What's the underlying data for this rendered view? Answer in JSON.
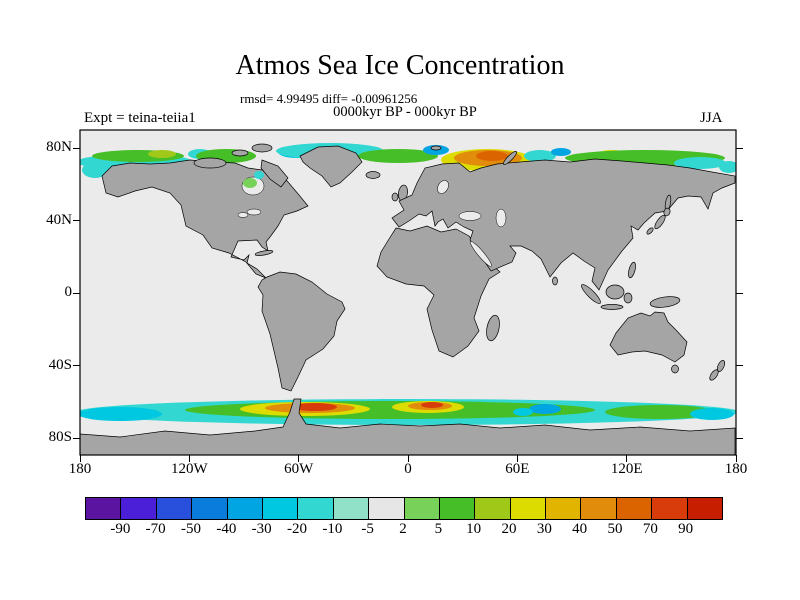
{
  "chart_data": {
    "type": "heatmap",
    "title": "Atmos Sea Ice Concentration",
    "stats_text": "rmsd= 4.99495 diff= -0.00961256",
    "rmsd": 4.99495,
    "diff": -0.00961256,
    "period_label": "0000kyr BP - 000kyr BP",
    "experiment_label": "Expt = teina-teiia1",
    "season_label": "JJA",
    "projection": "equirectangular world map, 90N-90S, 180W-180E",
    "lat_ticks": [
      "80N",
      "40N",
      "0",
      "40S",
      "80S"
    ],
    "lon_ticks": [
      "180",
      "120W",
      "60W",
      "0",
      "60E",
      "120E",
      "180"
    ],
    "colorbar": {
      "levels": [
        -90,
        -70,
        -50,
        -40,
        -30,
        -20,
        -10,
        -5,
        2,
        5,
        10,
        20,
        30,
        40,
        50,
        70,
        90
      ],
      "colors": [
        "#5a14a0",
        "#4b1ed7",
        "#2850dc",
        "#0a7ddc",
        "#00a5e1",
        "#00c8e1",
        "#32d7d2",
        "#91e1c8",
        "#e6e6e6",
        "#78d25a",
        "#46be28",
        "#a0c819",
        "#dcdc00",
        "#e1b400",
        "#e18c0a",
        "#dc6400",
        "#d73c0a",
        "#c81e00"
      ]
    },
    "map_colors": {
      "land": "#a5a5a5",
      "ocean": "#ebebeb",
      "coastline": "#000000"
    },
    "anomaly_regions": [
      {
        "region": "Arctic - Chukchi/Beaufort band",
        "sign": "positive",
        "approx_value": "5 to 20"
      },
      {
        "region": "Arctic - Greenland Sea",
        "sign": "negative",
        "approx_value": "-20 to -10"
      },
      {
        "region": "Arctic - Barents/Kara Sea",
        "sign": "positive",
        "approx_value": "30 to 50"
      },
      {
        "region": "Arctic - Laptev Sea spot",
        "sign": "negative",
        "approx_value": "-40 to -30"
      },
      {
        "region": "Arctic - Siberian shelf band",
        "sign": "positive",
        "approx_value": "5 to 20"
      },
      {
        "region": "Southern Ocean - Weddell Sea sector",
        "sign": "positive",
        "approx_value": "40 to 90"
      },
      {
        "region": "Southern Ocean - 0-30E sector",
        "sign": "positive",
        "approx_value": "40 to 90"
      },
      {
        "region": "Southern Ocean - Indian sector spot",
        "sign": "negative",
        "approx_value": "-40 to -30"
      },
      {
        "region": "Southern Ocean - circumpolar fringe",
        "sign": "negative",
        "approx_value": "-20 to -10"
      }
    ]
  }
}
